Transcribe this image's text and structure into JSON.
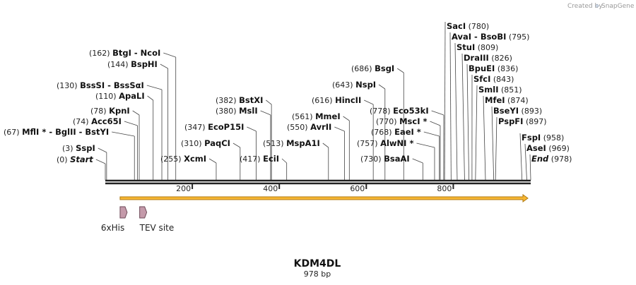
{
  "brand": {
    "prefix": "Created by",
    "name": "SnapGene"
  },
  "sequence": {
    "name": "KDM4DL",
    "length_label": "978 bp",
    "length": 978
  },
  "axis": {
    "ticks": [
      200,
      400,
      600,
      800
    ]
  },
  "cut_sites": [
    {
      "id": "start",
      "enzymes": [
        "Start"
      ],
      "pos_label": "(0)",
      "bp": 0,
      "italic": true
    },
    {
      "id": "sspi",
      "enzymes": [
        "SspI"
      ],
      "pos_label": "(3)",
      "bp": 3
    },
    {
      "id": "mfli",
      "enzymes": [
        "MflI *",
        "BglII",
        "BstYI"
      ],
      "pos_label": "(67)",
      "bp": 67
    },
    {
      "id": "acc65i",
      "enzymes": [
        "Acc65I"
      ],
      "pos_label": "(74)",
      "bp": 74
    },
    {
      "id": "kpni",
      "enzymes": [
        "KpnI"
      ],
      "pos_label": "(78)",
      "bp": 78
    },
    {
      "id": "apali",
      "enzymes": [
        "ApaLI"
      ],
      "pos_label": "(110)",
      "bp": 110
    },
    {
      "id": "bsssi",
      "enzymes": [
        "BssSI",
        "BssSαI"
      ],
      "pos_label": "(130)",
      "bp": 130
    },
    {
      "id": "bsphi",
      "enzymes": [
        "BspHI"
      ],
      "pos_label": "(144)",
      "bp": 144
    },
    {
      "id": "btgi",
      "enzymes": [
        "BtgI",
        "NcoI"
      ],
      "pos_label": "(162)",
      "bp": 162
    },
    {
      "id": "xcmi",
      "enzymes": [
        "XcmI"
      ],
      "pos_label": "(255)",
      "bp": 255,
      "label_left": true
    },
    {
      "id": "paqci",
      "enzymes": [
        "PaqCI"
      ],
      "pos_label": "(310)",
      "bp": 310
    },
    {
      "id": "ecop15i",
      "enzymes": [
        "EcoP15I"
      ],
      "pos_label": "(347)",
      "bp": 347
    },
    {
      "id": "msli",
      "enzymes": [
        "MslI"
      ],
      "pos_label": "(380)",
      "bp": 380
    },
    {
      "id": "bstxi",
      "enzymes": [
        "BstXI"
      ],
      "pos_label": "(382)",
      "bp": 382
    },
    {
      "id": "ecii",
      "enzymes": [
        "EciI"
      ],
      "pos_label": "(417)",
      "bp": 417,
      "label_left": true
    },
    {
      "id": "mspa1i",
      "enzymes": [
        "MspA1I"
      ],
      "pos_label": "(513)",
      "bp": 513,
      "label_left": true
    },
    {
      "id": "avrii",
      "enzymes": [
        "AvrII"
      ],
      "pos_label": "(550)",
      "bp": 550
    },
    {
      "id": "mmei",
      "enzymes": [
        "MmeI"
      ],
      "pos_label": "(561)",
      "bp": 561
    },
    {
      "id": "hincii",
      "enzymes": [
        "HincII"
      ],
      "pos_label": "(616)",
      "bp": 616
    },
    {
      "id": "nspi",
      "enzymes": [
        "NspI"
      ],
      "pos_label": "(643)",
      "bp": 643
    },
    {
      "id": "bsgi",
      "enzymes": [
        "BsgI"
      ],
      "pos_label": "(686)",
      "bp": 686
    },
    {
      "id": "bsaai",
      "enzymes": [
        "BsaAI"
      ],
      "pos_label": "(730)",
      "bp": 730
    },
    {
      "id": "alwnI",
      "enzymes": [
        "AlwNI *"
      ],
      "pos_label": "(757)",
      "bp": 757
    },
    {
      "id": "eaei",
      "enzymes": [
        "EaeI *"
      ],
      "pos_label": "(768)",
      "bp": 768
    },
    {
      "id": "msci",
      "enzymes": [
        "MscI *"
      ],
      "pos_label": "(770)",
      "bp": 770
    },
    {
      "id": "eco53ki",
      "enzymes": [
        "Eco53kI"
      ],
      "pos_label": "(778)",
      "bp": 778
    },
    {
      "id": "saci",
      "enzymes": [
        "SacI"
      ],
      "pos_label": "(780)",
      "bp": 780
    },
    {
      "id": "avai",
      "enzymes": [
        "AvaI",
        "BsoBI"
      ],
      "pos_label": "(795)",
      "bp": 795
    },
    {
      "id": "stui",
      "enzymes": [
        "StuI"
      ],
      "pos_label": "(809)",
      "bp": 809
    },
    {
      "id": "draiii",
      "enzymes": [
        "DraIII"
      ],
      "pos_label": "(826)",
      "bp": 826
    },
    {
      "id": "bpuei",
      "enzymes": [
        "BpuEI"
      ],
      "pos_label": "(836)",
      "bp": 836
    },
    {
      "id": "sfci",
      "enzymes": [
        "SfcI"
      ],
      "pos_label": "(843)",
      "bp": 843
    },
    {
      "id": "smli",
      "enzymes": [
        "SmlI"
      ],
      "pos_label": "(851)",
      "bp": 851
    },
    {
      "id": "mfei",
      "enzymes": [
        "MfeI"
      ],
      "pos_label": "(874)",
      "bp": 874
    },
    {
      "id": "bseyi",
      "enzymes": [
        "BseYI"
      ],
      "pos_label": "(893)",
      "bp": 893
    },
    {
      "id": "pspfi",
      "enzymes": [
        "PspFI"
      ],
      "pos_label": "(897)",
      "bp": 897
    },
    {
      "id": "fspi",
      "enzymes": [
        "FspI"
      ],
      "pos_label": "(958)",
      "bp": 958
    },
    {
      "id": "asei",
      "enzymes": [
        "AseI"
      ],
      "pos_label": "(969)",
      "bp": 969
    },
    {
      "id": "end",
      "enzymes": [
        "End"
      ],
      "pos_label": "(978)",
      "bp": 978,
      "italic": true
    }
  ],
  "features": [
    {
      "id": "6xhis",
      "label": "6xHis",
      "start_bp": 34,
      "end_bp": 51
    },
    {
      "id": "tev",
      "label": "TEV site",
      "start_bp": 79,
      "end_bp": 99
    }
  ],
  "orf": {
    "start_bp": 34,
    "end_bp": 978
  },
  "colors": {
    "backbone": "#222222",
    "orf_fill": "#f7b733",
    "orf_stroke": "#b07a10",
    "feature_fill": "#c49aaa",
    "feature_stroke": "#6d4a58",
    "site_line": "#444444"
  }
}
